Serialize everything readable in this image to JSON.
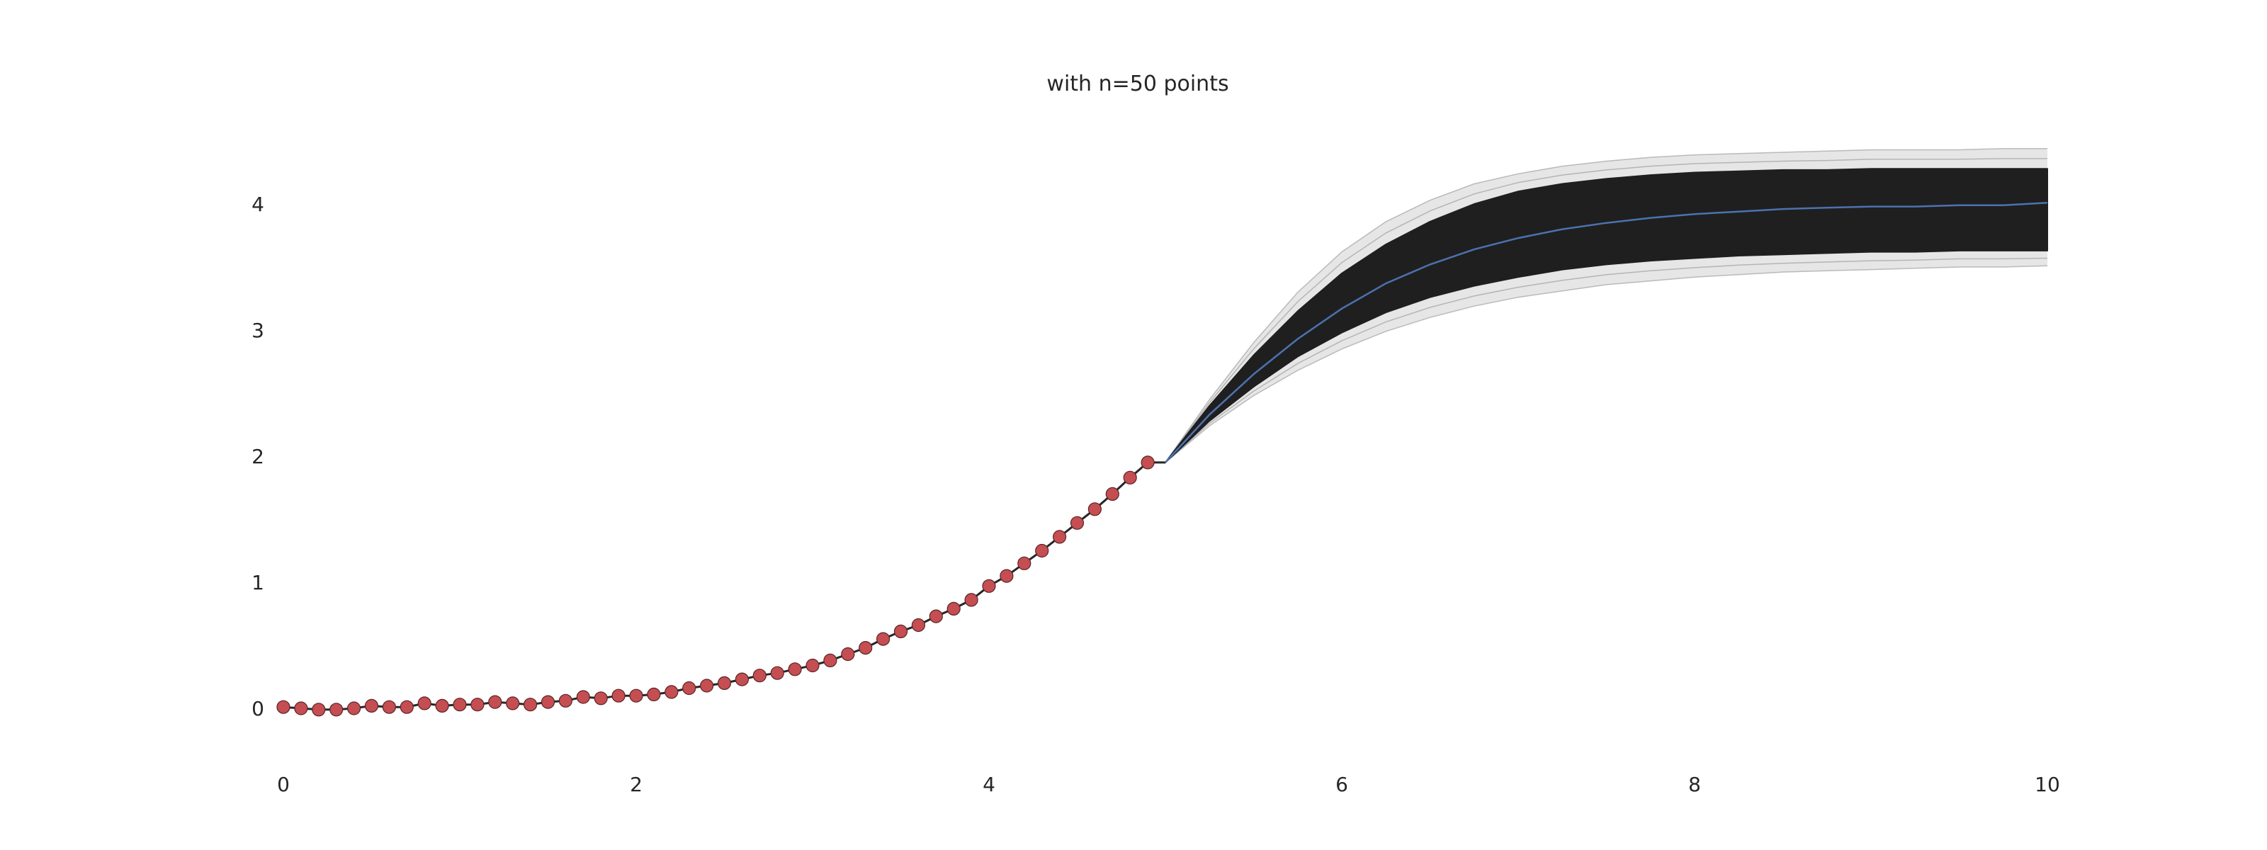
{
  "chart_data": {
    "type": "line",
    "title": "with n=50 points",
    "xlabel": "",
    "ylabel": "",
    "xlim": [
      0,
      10
    ],
    "ylim": [
      -0.5,
      4.5
    ],
    "grid": false,
    "xticks": [
      0,
      2,
      4,
      6,
      8,
      10
    ],
    "xtick_labels": [
      "0",
      "2",
      "4",
      "6",
      "8",
      "10"
    ],
    "yticks": [
      0,
      1,
      2,
      3,
      4
    ],
    "ytick_labels": [
      "0",
      "1",
      "2",
      "3",
      "4"
    ],
    "observed_points": {
      "x": [
        0.0,
        0.1,
        0.2,
        0.3,
        0.4,
        0.5,
        0.6,
        0.7,
        0.8,
        0.9,
        1.0,
        1.1,
        1.2,
        1.3,
        1.4,
        1.5,
        1.6,
        1.7,
        1.8,
        1.9,
        2.0,
        2.1,
        2.2,
        2.3,
        2.4,
        2.5,
        2.6,
        2.7,
        2.8,
        2.9,
        3.0,
        3.1,
        3.2,
        3.3,
        3.4,
        3.5,
        3.6,
        3.7,
        3.8,
        3.9,
        4.0,
        4.1,
        4.2,
        4.3,
        4.4,
        4.5,
        4.6,
        4.7,
        4.8,
        4.9
      ],
      "y": [
        0.01,
        0.0,
        -0.01,
        -0.01,
        0.0,
        0.02,
        0.01,
        0.01,
        0.04,
        0.02,
        0.03,
        0.03,
        0.05,
        0.04,
        0.03,
        0.05,
        0.06,
        0.09,
        0.08,
        0.1,
        0.1,
        0.11,
        0.13,
        0.16,
        0.18,
        0.2,
        0.23,
        0.26,
        0.28,
        0.31,
        0.34,
        0.38,
        0.43,
        0.48,
        0.55,
        0.61,
        0.66,
        0.73,
        0.79,
        0.86,
        0.97,
        1.05,
        1.15,
        1.25,
        1.36,
        1.47,
        1.58,
        1.7,
        1.83,
        1.95
      ],
      "color": "#c44e52"
    },
    "forecast": {
      "x": [
        5.0,
        5.25,
        5.5,
        5.75,
        6.0,
        6.25,
        6.5,
        6.75,
        7.0,
        7.25,
        7.5,
        7.75,
        8.0,
        8.25,
        8.5,
        8.75,
        9.0,
        9.25,
        9.5,
        9.75,
        10.0
      ],
      "mean": [
        1.95,
        2.33,
        2.65,
        2.93,
        3.17,
        3.37,
        3.52,
        3.64,
        3.73,
        3.8,
        3.85,
        3.89,
        3.92,
        3.94,
        3.96,
        3.97,
        3.98,
        3.98,
        3.99,
        3.99,
        4.01
      ],
      "band_upper": [
        1.95,
        2.4,
        2.8,
        3.15,
        3.45,
        3.68,
        3.86,
        4.0,
        4.1,
        4.16,
        4.2,
        4.23,
        4.25,
        4.26,
        4.27,
        4.27,
        4.28,
        4.28,
        4.28,
        4.28,
        4.28
      ],
      "band_lower": [
        1.95,
        2.28,
        2.55,
        2.79,
        2.98,
        3.14,
        3.26,
        3.35,
        3.42,
        3.48,
        3.52,
        3.55,
        3.57,
        3.59,
        3.6,
        3.61,
        3.62,
        3.62,
        3.63,
        3.63,
        3.63
      ],
      "outer_upper": [
        1.95,
        2.45,
        2.9,
        3.3,
        3.62,
        3.86,
        4.03,
        4.16,
        4.24,
        4.3,
        4.34,
        4.37,
        4.39,
        4.4,
        4.41,
        4.42,
        4.43,
        4.43,
        4.43,
        4.44,
        4.44
      ],
      "outer_lower": [
        1.95,
        2.24,
        2.48,
        2.68,
        2.85,
        2.99,
        3.1,
        3.19,
        3.26,
        3.31,
        3.36,
        3.39,
        3.42,
        3.44,
        3.46,
        3.47,
        3.48,
        3.49,
        3.5,
        3.5,
        3.51
      ],
      "band_color": "#1f1f1f",
      "mean_color": "#4c72b0"
    },
    "true_curve_color": "#262626"
  }
}
